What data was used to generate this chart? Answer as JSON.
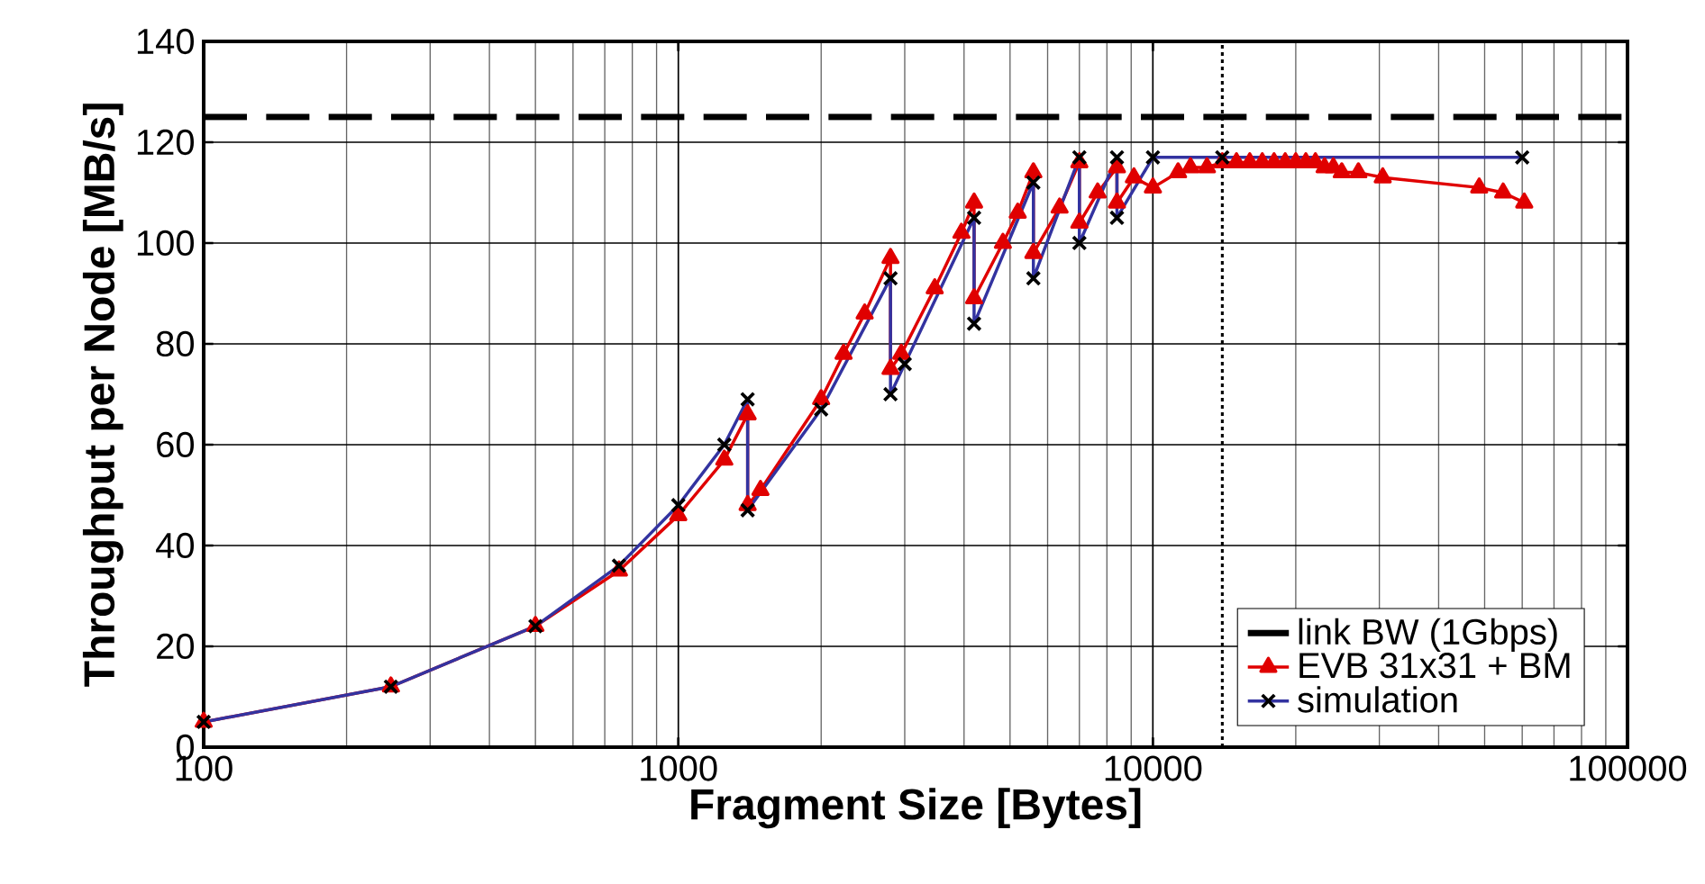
{
  "chart_data": {
    "type": "line",
    "xlabel": "Fragment Size [Bytes]",
    "ylabel": "Throughput per Node [MB/s]",
    "log": "x",
    "xlim": [
      100,
      100000
    ],
    "xticks": [
      100,
      1000,
      10000,
      100000
    ],
    "ylim": [
      0,
      140
    ],
    "yticks": [
      0,
      20,
      40,
      60,
      80,
      100,
      120,
      140
    ],
    "grid": true,
    "legend": "bottom right",
    "line_style": "solid",
    "ref_lines": [
      {
        "axis": "y",
        "value": 125,
        "label": "link BW (1Gbps)",
        "color": "#000000",
        "line_style": "dashed"
      },
      {
        "axis": "x",
        "value": 14000,
        "color": "#000000",
        "line_style": "dotted"
      }
    ],
    "series": [
      {
        "name": "EVB 31x31 + BM",
        "color": "#e00000",
        "marker": "triangle",
        "x": [
          100,
          248,
          500,
          750,
          1000,
          1250,
          1400,
          1400,
          1490,
          2000,
          2230,
          2470,
          2800,
          2800,
          2950,
          3470,
          3950,
          4200,
          4200,
          4830,
          5190,
          5600,
          5600,
          6360,
          7000,
          7000,
          7650,
          8400,
          8400,
          9120,
          10000,
          11300,
          12000,
          13000,
          14000,
          15000,
          16000,
          17000,
          18000,
          19000,
          20000,
          21000,
          22000,
          23000,
          24000,
          25000,
          27100,
          30500,
          48700,
          54700,
          60600
        ],
        "values": [
          5,
          12,
          24,
          35,
          46,
          57,
          66,
          48,
          51,
          69,
          78,
          86,
          97,
          75,
          78,
          91,
          102,
          108,
          89,
          100,
          106,
          114,
          98,
          107,
          116,
          104,
          110,
          115,
          108,
          113,
          111,
          114,
          115,
          115,
          116,
          116,
          116,
          116,
          116,
          116,
          116,
          116,
          116,
          115,
          115,
          114,
          114,
          113,
          111,
          110,
          108
        ]
      },
      {
        "name": "simulation",
        "color": "#3333a0",
        "marker": "cross",
        "x": [
          100,
          248,
          500,
          750,
          1000,
          1250,
          1400,
          1400,
          2000,
          2800,
          2800,
          3000,
          4200,
          4200,
          5600,
          5600,
          7000,
          7000,
          8400,
          8400,
          10000,
          14000,
          60000
        ],
        "values": [
          5,
          12,
          24,
          36,
          48,
          60,
          69,
          47,
          67,
          93,
          70,
          76,
          105,
          84,
          112,
          93,
          117,
          100,
          117,
          105,
          117,
          117,
          117
        ]
      }
    ]
  }
}
